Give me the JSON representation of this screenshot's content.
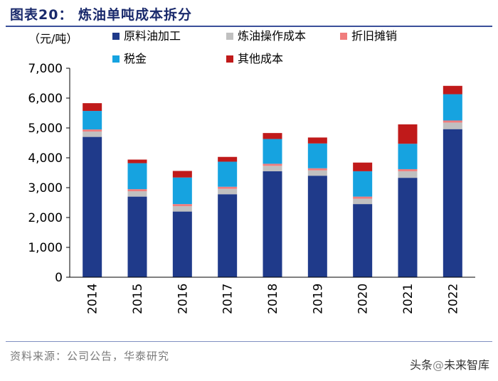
{
  "header": {
    "title": "图表20：  炼油单吨成本拆分"
  },
  "chart_data": {
    "type": "bar",
    "stacked": true,
    "title": "图表20：  炼油单吨成本拆分",
    "ylabel": "（元/吨）",
    "xlabel": "",
    "ylim": [
      0,
      7000
    ],
    "yticks": [
      0,
      1000,
      2000,
      3000,
      4000,
      5000,
      6000,
      7000
    ],
    "ytick_labels": [
      "0",
      "1,000",
      "2,000",
      "3,000",
      "4,000",
      "5,000",
      "6,000",
      "7,000"
    ],
    "categories": [
      "2014",
      "2015",
      "2016",
      "2017",
      "2018",
      "2019",
      "2020",
      "2021",
      "2022"
    ],
    "series": [
      {
        "name": "原料油加工",
        "color": "#1f3a8a",
        "values": [
          4700,
          2700,
          2200,
          2780,
          3550,
          3400,
          2450,
          3330,
          4960
        ]
      },
      {
        "name": "炼油操作成本",
        "color": "#c0c0c0",
        "values": [
          180,
          180,
          180,
          180,
          180,
          180,
          180,
          220,
          220
        ]
      },
      {
        "name": "折旧摊销",
        "color": "#f07d7d",
        "values": [
          70,
          70,
          70,
          70,
          70,
          70,
          70,
          70,
          70
        ]
      },
      {
        "name": "税金",
        "color": "#16a3e0",
        "values": [
          620,
          870,
          890,
          840,
          830,
          830,
          850,
          850,
          880
        ]
      },
      {
        "name": "其他成本",
        "color": "#c01a1a",
        "values": [
          260,
          120,
          220,
          160,
          200,
          200,
          290,
          650,
          280
        ]
      }
    ],
    "legend": [
      [
        "原料油加工",
        "炼油操作成本",
        "折旧摊销"
      ],
      [
        "税金",
        "其他成本"
      ]
    ],
    "legend_position": "top"
  },
  "footer": {
    "source": "资料来源：公司公告，华泰研究",
    "watermark_prefix": "头条",
    "watermark_at": "@",
    "watermark_name": "未来智库"
  }
}
